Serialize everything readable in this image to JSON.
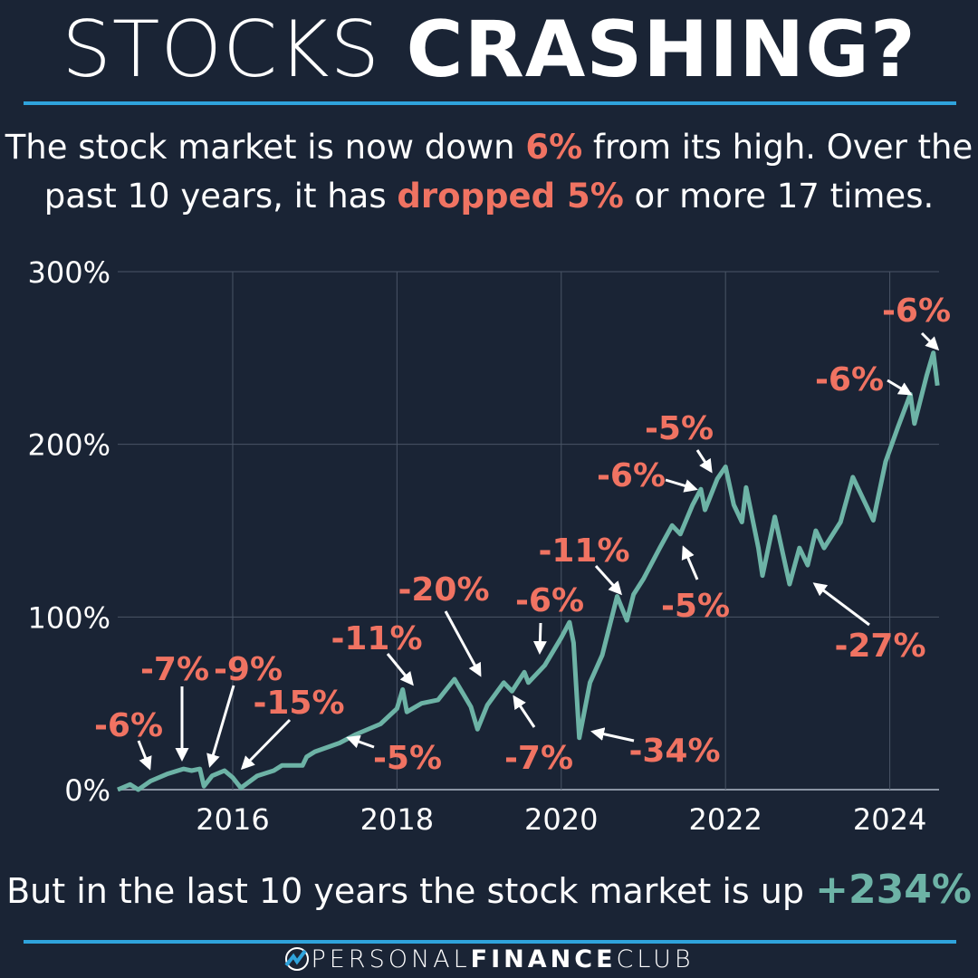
{
  "header": {
    "title_light": "STOCKS",
    "title_bold": "CRASHING?"
  },
  "subtitle": {
    "part1": "The stock market is now down ",
    "hl1": "6%",
    "part2": " from its high. Over the past 10 years, it has ",
    "hl2": "dropped 5%",
    "part3": " or more 17 times."
  },
  "footer_text": {
    "part1": "But in the last 10 years the stock market is up ",
    "value": "+234%"
  },
  "brand": {
    "light1": "PERSONAL",
    "bold": "FINANCE",
    "light2": "CLUB",
    "logo_icon": "chart-circle-logo"
  },
  "colors": {
    "background": "#1a2435",
    "line": "#6db3a6",
    "drop_label": "#f07362",
    "rule": "#2fa3dc"
  },
  "chart_data": {
    "type": "line",
    "title": "",
    "xlabel": "",
    "ylabel": "",
    "xlim": [
      2014.6,
      2024.6
    ],
    "ylim": [
      0,
      300
    ],
    "x_ticks": [
      "2016",
      "2018",
      "2020",
      "2022",
      "2024"
    ],
    "y_ticks": [
      "0%",
      "100%",
      "200%",
      "300%"
    ],
    "grid": true,
    "series": [
      {
        "x": [
          2014.6,
          2014.75,
          2014.85,
          2015.0,
          2015.2,
          2015.4,
          2015.5,
          2015.6,
          2015.65,
          2015.75,
          2015.9,
          2016.0,
          2016.1,
          2016.3,
          2016.5,
          2016.6,
          2016.85,
          2016.9,
          2017.0,
          2017.3,
          2017.5,
          2017.8,
          2018.0,
          2018.07,
          2018.12,
          2018.3,
          2018.5,
          2018.7,
          2018.9,
          2018.98,
          2019.1,
          2019.3,
          2019.4,
          2019.55,
          2019.6,
          2019.8,
          2020.0,
          2020.1,
          2020.15,
          2020.22,
          2020.35,
          2020.5,
          2020.68,
          2020.8,
          2020.88,
          2021.0,
          2021.2,
          2021.35,
          2021.45,
          2021.6,
          2021.7,
          2021.75,
          2021.9,
          2022.0,
          2022.1,
          2022.2,
          2022.25,
          2022.4,
          2022.45,
          2022.6,
          2022.78,
          2022.9,
          2023.0,
          2023.1,
          2023.2,
          2023.4,
          2023.55,
          2023.8,
          2023.95,
          2024.1,
          2024.25,
          2024.3,
          2024.45,
          2024.53,
          2024.58
        ],
        "y": [
          0,
          3,
          0,
          5,
          9,
          12,
          11,
          12,
          2,
          8,
          11,
          7,
          1,
          8,
          11,
          14,
          14,
          19,
          22,
          27,
          32,
          38,
          47,
          58,
          45,
          50,
          52,
          64,
          48,
          35,
          49,
          62,
          57,
          68,
          62,
          72,
          88,
          97,
          85,
          30,
          62,
          78,
          112,
          98,
          113,
          122,
          140,
          153,
          148,
          165,
          174,
          162,
          180,
          187,
          165,
          155,
          175,
          140,
          124,
          158,
          119,
          140,
          130,
          150,
          140,
          155,
          181,
          156,
          190,
          210,
          229,
          212,
          240,
          253,
          234
        ]
      }
    ],
    "annotations": [
      "-6%",
      "-7%",
      "-9%",
      "-15%",
      "-11%",
      "-5%",
      "-20%",
      "-6%",
      "-7%",
      "-34%",
      "-11%",
      "-5%",
      "-6%",
      "-5%",
      "-27%",
      "-6%",
      "-6%"
    ]
  }
}
